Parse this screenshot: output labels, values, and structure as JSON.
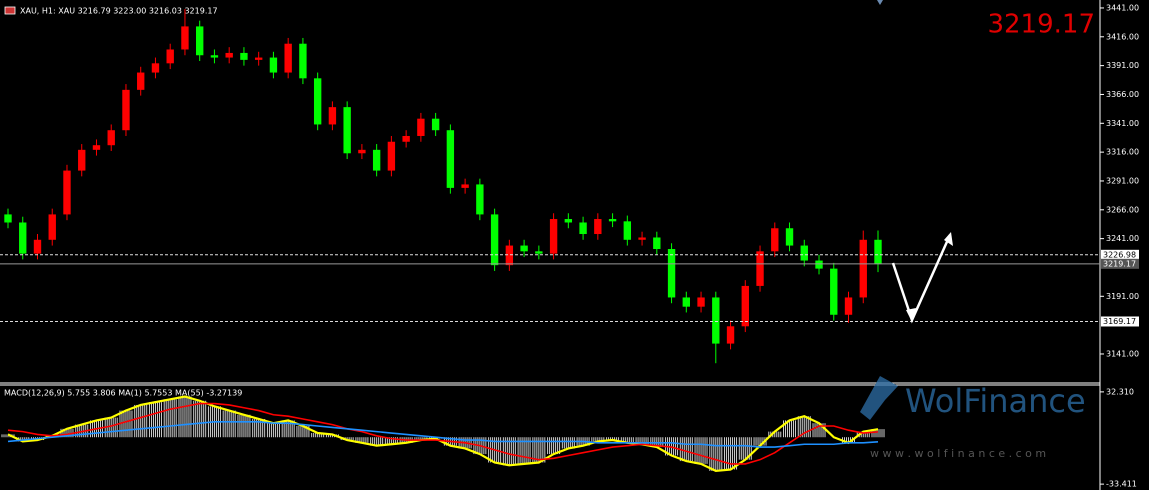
{
  "chart_data": [
    {
      "type": "candlestick",
      "title": "XAU, H1:  XAU  3216.79 3223.00 3216.03 3219.17",
      "price_label": "3219.17",
      "up_color": "#ff0000",
      "down_color": "#00ff00",
      "ylim": [
        3116.7,
        3447.9
      ],
      "yticks": [
        {
          "value": 3441,
          "label": "3441.00"
        },
        {
          "value": 3416,
          "label": "3416.00"
        },
        {
          "value": 3391,
          "label": "3391.00"
        },
        {
          "value": 3366,
          "label": "3366.00"
        },
        {
          "value": 3341,
          "label": "3341.00"
        },
        {
          "value": 3316,
          "label": "3316.00"
        },
        {
          "value": 3291,
          "label": "3291.00"
        },
        {
          "value": 3266,
          "label": "3266.00"
        },
        {
          "value": 3241,
          "label": "3241.00"
        },
        {
          "value": 3191,
          "label": "3191.00"
        },
        {
          "value": 3141,
          "label": "3141.00"
        }
      ],
      "levels": [
        {
          "value": 3226.98,
          "label": "3226.98",
          "style": "dashed"
        },
        {
          "value": 3219.17,
          "label": "3219.17",
          "style": "solid"
        },
        {
          "value": 3169.17,
          "label": "3169.17",
          "style": "dashed"
        }
      ],
      "open": [
        3262,
        3255,
        3228,
        3240,
        3262,
        3300,
        3318,
        3322,
        3335,
        3370,
        3385,
        3393,
        3405,
        3425,
        3400,
        3398,
        3402,
        3396,
        3398,
        3385,
        3410,
        3380,
        3340,
        3355,
        3315,
        3318,
        3300,
        3325,
        3330,
        3345,
        3335,
        3285,
        3288,
        3262,
        3218,
        3235,
        3230,
        3228,
        3258,
        3255,
        3245,
        3258,
        3256,
        3240,
        3242,
        3232,
        3190,
        3182,
        3190,
        3150,
        3165,
        3200,
        3230,
        3250,
        3235,
        3222,
        3215,
        3175,
        3190,
        3240
      ],
      "high": [
        3267,
        3260,
        3245,
        3267,
        3305,
        3323,
        3327,
        3340,
        3375,
        3390,
        3398,
        3410,
        3440,
        3430,
        3405,
        3407,
        3407,
        3403,
        3403,
        3415,
        3415,
        3385,
        3360,
        3360,
        3323,
        3323,
        3330,
        3335,
        3350,
        3350,
        3340,
        3293,
        3293,
        3267,
        3240,
        3240,
        3235,
        3263,
        3263,
        3260,
        3263,
        3263,
        3261,
        3247,
        3247,
        3237,
        3195,
        3195,
        3195,
        3170,
        3205,
        3235,
        3255,
        3255,
        3240,
        3227,
        3220,
        3195,
        3248,
        3248
      ],
      "low": [
        3250,
        3223,
        3223,
        3235,
        3257,
        3295,
        3313,
        3317,
        3330,
        3365,
        3380,
        3388,
        3400,
        3395,
        3393,
        3393,
        3391,
        3391,
        3380,
        3380,
        3375,
        3335,
        3335,
        3310,
        3310,
        3295,
        3295,
        3320,
        3325,
        3330,
        3280,
        3280,
        3257,
        3213,
        3213,
        3225,
        3223,
        3223,
        3250,
        3240,
        3240,
        3251,
        3235,
        3235,
        3227,
        3185,
        3177,
        3177,
        3133,
        3145,
        3160,
        3195,
        3225,
        3230,
        3217,
        3210,
        3170,
        3168,
        3185,
        3212
      ],
      "close": [
        3255,
        3228,
        3240,
        3262,
        3300,
        3318,
        3322,
        3335,
        3370,
        3385,
        3393,
        3405,
        3425,
        3400,
        3398,
        3402,
        3396,
        3398,
        3385,
        3410,
        3380,
        3340,
        3355,
        3315,
        3318,
        3300,
        3325,
        3330,
        3345,
        3335,
        3285,
        3288,
        3262,
        3218,
        3235,
        3230,
        3228,
        3258,
        3255,
        3245,
        3258,
        3256,
        3240,
        3242,
        3232,
        3190,
        3182,
        3190,
        3150,
        3165,
        3200,
        3230,
        3250,
        3235,
        3222,
        3215,
        3175,
        3190,
        3240,
        3219.17
      ]
    },
    {
      "type": "indicator",
      "title": "MACD(12,26,9) 5.755 3.806 MA(1) 5.7553 MA(55) -3.27139",
      "ylim": [
        -37.6,
        36.5
      ],
      "yticks": [
        {
          "value": 32.31,
          "label": "32.310"
        },
        {
          "value": -33.411,
          "label": "-33.411"
        }
      ],
      "watermark": "WolFinance",
      "watermark_url": "w w w . w o l f i n a n c e . c o m",
      "series": [
        {
          "kind": "histogram",
          "color": "#d0d0d0",
          "values": [
            2,
            -3,
            -2,
            1,
            6,
            9,
            12,
            14,
            19,
            23,
            25,
            27,
            29,
            26,
            22,
            19,
            16,
            13,
            10,
            12,
            8,
            3,
            2,
            -2,
            -4,
            -6,
            -5,
            -4,
            -2,
            -1,
            -6,
            -8,
            -12,
            -18,
            -20,
            -19,
            -18,
            -12,
            -8,
            -6,
            -3,
            -2,
            -4,
            -5,
            -7,
            -13,
            -17,
            -19,
            -24,
            -23,
            -16,
            -6,
            4,
            12,
            15,
            10,
            0,
            -4,
            4,
            5.755
          ]
        },
        {
          "kind": "line",
          "color": "#ffff00",
          "values": [
            2,
            -3,
            -2,
            1,
            6,
            9,
            12,
            14,
            19,
            23,
            25,
            27,
            29,
            26,
            22,
            19,
            16,
            13,
            10,
            12,
            8,
            3,
            2,
            -2,
            -4,
            -6,
            -5,
            -4,
            -2,
            -1,
            -6,
            -8,
            -12,
            -18,
            -20,
            -19,
            -18,
            -12,
            -8,
            -6,
            -3,
            -2,
            -4,
            -5,
            -7,
            -13,
            -17,
            -19,
            -24,
            -23,
            -16,
            -6,
            4,
            12,
            15,
            10,
            0,
            -4,
            4,
            5.7553
          ]
        },
        {
          "kind": "line",
          "color": "#ff0000",
          "values": [
            5,
            4,
            2,
            1,
            2,
            4,
            6,
            8,
            11,
            14,
            17,
            20,
            22,
            24,
            24,
            23,
            21,
            19,
            16,
            15,
            13,
            11,
            9,
            6,
            4,
            1,
            -1,
            -2,
            -2,
            -2,
            -3,
            -4,
            -6,
            -9,
            -12,
            -14,
            -16,
            -15,
            -13,
            -11,
            -9,
            -7,
            -6,
            -5,
            -6,
            -7,
            -10,
            -13,
            -16,
            -19,
            -19,
            -16,
            -11,
            -4,
            3,
            8,
            8,
            5,
            3,
            3.806
          ]
        },
        {
          "kind": "line",
          "color": "#1e90ff",
          "values": [
            -3,
            -2,
            -1,
            0,
            1,
            2,
            3,
            4,
            5,
            6,
            7,
            8,
            9,
            10,
            11,
            11,
            11,
            11,
            10,
            10,
            9,
            8,
            7,
            6,
            5,
            4,
            3,
            2,
            1,
            0,
            -1,
            -2,
            -2,
            -3,
            -3,
            -3,
            -3,
            -3,
            -3,
            -3,
            -4,
            -4,
            -4,
            -4,
            -4,
            -4,
            -5,
            -5,
            -6,
            -6,
            -6,
            -7,
            -7,
            -6,
            -5,
            -5,
            -5,
            -4,
            -4,
            -3.27139
          ]
        }
      ]
    }
  ]
}
